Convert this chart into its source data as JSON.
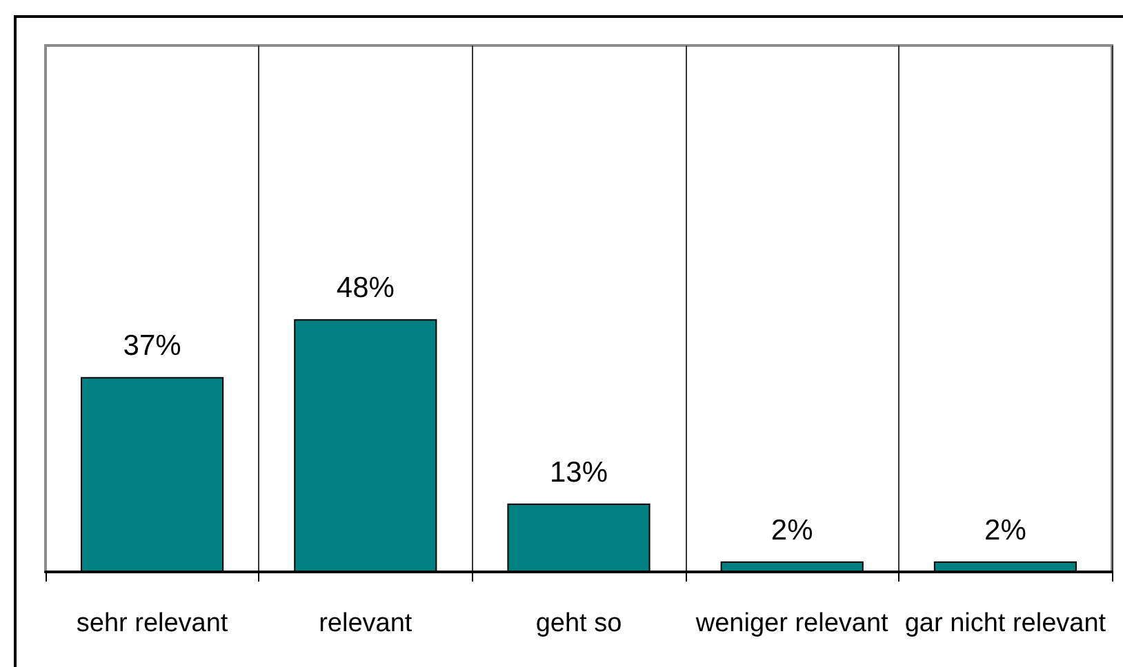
{
  "chart_data": {
    "type": "bar",
    "categories": [
      "sehr relevant",
      "relevant",
      "geht so",
      "weniger relevant",
      "gar nicht relevant"
    ],
    "values": [
      37,
      48,
      13,
      2,
      2
    ],
    "value_labels": [
      "37%",
      "48%",
      "13%",
      "2%",
      "2%"
    ],
    "color": "#008080",
    "ylim": [
      0,
      100
    ],
    "tick_labels": "x",
    "grid": "x"
  }
}
